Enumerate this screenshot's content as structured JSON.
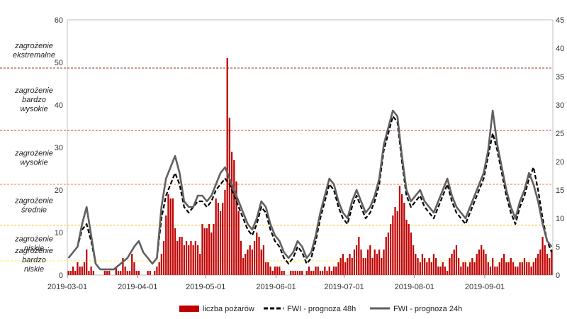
{
  "chart_data": {
    "type": "bar+line",
    "x_range": [
      "2019-03-01",
      "2019-09-30"
    ],
    "x_ticks": [
      "2019-03-01",
      "2019-04-01",
      "2019-05-01",
      "2019-06-01",
      "2019-07-01",
      "2019-08-01",
      "2019-09-01"
    ],
    "y_left": {
      "min": 0,
      "max": 60,
      "ticks": [
        0,
        10,
        20,
        30,
        40,
        50,
        60
      ]
    },
    "y_right": {
      "min": 0,
      "max": 45,
      "ticks": [
        0,
        5,
        10,
        15,
        20,
        25,
        30,
        35,
        40,
        45
      ]
    },
    "tick_labels_right": [
      "0",
      "5",
      "10",
      "15",
      "20",
      "25",
      "30",
      "35",
      "40",
      "45"
    ],
    "thresholds": [
      {
        "value": 2.5,
        "color": "#ffe84d"
      },
      {
        "value": 8.8,
        "color": "#f0c020"
      },
      {
        "value": 16.0,
        "color": "#f08040"
      },
      {
        "value": 25.5,
        "color": "#d04040"
      },
      {
        "value": 36.5,
        "color": "#903030"
      }
    ],
    "zones": [
      {
        "label": [
          "zagrożenie",
          "bardzo",
          "niskie"
        ]
      },
      {
        "label": [
          "zagrożenie",
          "niskie"
        ]
      },
      {
        "label": [
          "zagrożenie",
          "średnie"
        ]
      },
      {
        "label": [
          "zagrożenie",
          "wysokie"
        ]
      },
      {
        "label": [
          "zagrożenie",
          "bardzo",
          "wysokie"
        ]
      },
      {
        "label": [
          "zagrożenie",
          "ekstremalne"
        ]
      }
    ],
    "series": [
      {
        "name": "liczba pożarów",
        "type": "bar",
        "axis": "left",
        "color": "#c00000",
        "values": [
          1,
          1,
          2,
          1,
          3,
          2,
          2,
          3,
          6,
          1,
          2,
          1,
          0,
          0,
          0,
          0,
          1,
          1,
          1,
          0,
          0,
          2,
          1,
          1,
          4,
          2,
          1,
          1,
          5,
          3,
          1,
          1,
          0,
          0,
          0,
          1,
          1,
          0,
          1,
          2,
          3,
          5,
          8,
          14,
          19,
          18,
          18,
          11,
          8,
          9,
          9,
          7,
          8,
          7,
          8,
          7,
          8,
          7,
          5,
          12,
          11,
          11,
          12,
          10,
          12,
          18,
          17,
          15,
          17,
          20,
          51,
          37,
          29,
          27,
          22,
          15,
          8,
          4,
          5,
          6,
          7,
          6,
          8,
          10,
          9,
          6,
          7,
          3,
          3,
          2,
          1,
          2,
          2,
          2,
          1,
          1,
          0,
          0,
          1,
          1,
          1,
          1,
          1,
          1,
          0,
          1,
          2,
          1,
          1,
          2,
          2,
          1,
          1,
          2,
          1,
          2,
          1,
          2,
          2,
          3,
          4,
          5,
          3,
          4,
          5,
          4,
          6,
          7,
          9,
          6,
          4,
          4,
          6,
          7,
          4,
          6,
          5,
          6,
          4,
          6,
          9,
          10,
          12,
          14,
          16,
          15,
          21,
          19,
          17,
          13,
          12,
          10,
          7,
          5,
          4,
          3,
          5,
          4,
          3,
          4,
          3,
          5,
          4,
          2,
          2,
          3,
          2,
          1,
          4,
          5,
          6,
          7,
          4,
          2,
          3,
          3,
          2,
          3,
          4,
          3,
          5,
          6,
          7,
          6,
          5,
          3,
          2,
          4,
          2,
          2,
          3,
          4,
          5,
          3,
          3,
          4,
          3,
          2,
          2,
          3,
          3,
          4,
          3,
          3,
          2,
          3,
          4,
          5,
          6,
          9,
          7,
          5,
          4,
          6,
          3,
          2,
          3,
          2,
          1,
          1,
          1,
          1,
          1,
          1,
          0,
          1,
          1,
          1,
          2,
          1,
          1,
          1,
          1,
          0,
          1,
          1
        ]
      },
      {
        "name": "FWI - prognoza 48h",
        "type": "line",
        "axis": "right",
        "color": "#000000",
        "points": [
          [
            "2019-03-01",
            3
          ],
          [
            "2019-03-03",
            4
          ],
          [
            "2019-03-05",
            5
          ],
          [
            "2019-03-07",
            8
          ],
          [
            "2019-03-09",
            9
          ],
          [
            "2019-03-11",
            6
          ],
          [
            "2019-03-13",
            2
          ],
          [
            "2019-03-15",
            1
          ],
          [
            "2019-03-18",
            1
          ],
          [
            "2019-03-21",
            1
          ],
          [
            "2019-03-24",
            2
          ],
          [
            "2019-03-27",
            3
          ],
          [
            "2019-03-30",
            5
          ],
          [
            "2019-04-01",
            6
          ],
          [
            "2019-04-03",
            4
          ],
          [
            "2019-04-05",
            3
          ],
          [
            "2019-04-07",
            2
          ],
          [
            "2019-04-09",
            3
          ],
          [
            "2019-04-11",
            10
          ],
          [
            "2019-04-13",
            14
          ],
          [
            "2019-04-15",
            16
          ],
          [
            "2019-04-17",
            18
          ],
          [
            "2019-04-19",
            16
          ],
          [
            "2019-04-21",
            12
          ],
          [
            "2019-04-23",
            11
          ],
          [
            "2019-04-25",
            12
          ],
          [
            "2019-04-27",
            13
          ],
          [
            "2019-04-29",
            13
          ],
          [
            "2019-05-01",
            12
          ],
          [
            "2019-05-03",
            13
          ],
          [
            "2019-05-05",
            15
          ],
          [
            "2019-05-07",
            16
          ],
          [
            "2019-05-09",
            17
          ],
          [
            "2019-05-11",
            16
          ],
          [
            "2019-05-13",
            14
          ],
          [
            "2019-05-15",
            12
          ],
          [
            "2019-05-17",
            10
          ],
          [
            "2019-05-19",
            8
          ],
          [
            "2019-05-21",
            7
          ],
          [
            "2019-05-23",
            9
          ],
          [
            "2019-05-25",
            12
          ],
          [
            "2019-05-27",
            11
          ],
          [
            "2019-05-29",
            8
          ],
          [
            "2019-05-31",
            6
          ],
          [
            "2019-06-02",
            5
          ],
          [
            "2019-06-04",
            3
          ],
          [
            "2019-06-06",
            2
          ],
          [
            "2019-06-08",
            3
          ],
          [
            "2019-06-10",
            5
          ],
          [
            "2019-06-12",
            4
          ],
          [
            "2019-06-14",
            2
          ],
          [
            "2019-06-16",
            3
          ],
          [
            "2019-06-18",
            6
          ],
          [
            "2019-06-20",
            10
          ],
          [
            "2019-06-22",
            13
          ],
          [
            "2019-06-24",
            16
          ],
          [
            "2019-06-26",
            15
          ],
          [
            "2019-06-28",
            12
          ],
          [
            "2019-06-30",
            10
          ],
          [
            "2019-07-02",
            9
          ],
          [
            "2019-07-04",
            12
          ],
          [
            "2019-07-06",
            14
          ],
          [
            "2019-07-08",
            12
          ],
          [
            "2019-07-10",
            10
          ],
          [
            "2019-07-12",
            11
          ],
          [
            "2019-07-14",
            13
          ],
          [
            "2019-07-16",
            16
          ],
          [
            "2019-07-18",
            22
          ],
          [
            "2019-07-20",
            25
          ],
          [
            "2019-07-22",
            28
          ],
          [
            "2019-07-24",
            27
          ],
          [
            "2019-07-26",
            20
          ],
          [
            "2019-07-28",
            14
          ],
          [
            "2019-07-30",
            12
          ],
          [
            "2019-08-01",
            13
          ],
          [
            "2019-08-03",
            14
          ],
          [
            "2019-08-05",
            12
          ],
          [
            "2019-08-07",
            11
          ],
          [
            "2019-08-09",
            10
          ],
          [
            "2019-08-11",
            12
          ],
          [
            "2019-08-13",
            14
          ],
          [
            "2019-08-15",
            16
          ],
          [
            "2019-08-17",
            13
          ],
          [
            "2019-08-19",
            11
          ],
          [
            "2019-08-21",
            10
          ],
          [
            "2019-08-23",
            9
          ],
          [
            "2019-08-25",
            11
          ],
          [
            "2019-08-27",
            13
          ],
          [
            "2019-08-29",
            15
          ],
          [
            "2019-08-31",
            17
          ],
          [
            "2019-09-02",
            21
          ],
          [
            "2019-09-04",
            25
          ],
          [
            "2019-09-06",
            22
          ],
          [
            "2019-09-08",
            18
          ],
          [
            "2019-09-10",
            14
          ],
          [
            "2019-09-12",
            11
          ],
          [
            "2019-09-14",
            9
          ],
          [
            "2019-09-16",
            12
          ],
          [
            "2019-09-18",
            14
          ],
          [
            "2019-09-20",
            17
          ],
          [
            "2019-09-22",
            19
          ],
          [
            "2019-09-24",
            15
          ],
          [
            "2019-09-26",
            10
          ],
          [
            "2019-09-28",
            6
          ],
          [
            "2019-09-30",
            4
          ]
        ]
      },
      {
        "name": "FWI - prognoza 24h",
        "type": "line",
        "axis": "right",
        "color": "#606060",
        "points": [
          [
            "2019-03-01",
            3
          ],
          [
            "2019-03-03",
            4
          ],
          [
            "2019-03-05",
            5
          ],
          [
            "2019-03-07",
            9
          ],
          [
            "2019-03-09",
            12
          ],
          [
            "2019-03-11",
            7
          ],
          [
            "2019-03-13",
            2
          ],
          [
            "2019-03-15",
            1
          ],
          [
            "2019-03-18",
            1
          ],
          [
            "2019-03-21",
            1
          ],
          [
            "2019-03-24",
            2
          ],
          [
            "2019-03-27",
            3
          ],
          [
            "2019-03-30",
            5
          ],
          [
            "2019-04-01",
            6
          ],
          [
            "2019-04-03",
            4
          ],
          [
            "2019-04-05",
            3
          ],
          [
            "2019-04-07",
            2
          ],
          [
            "2019-04-09",
            3
          ],
          [
            "2019-04-11",
            12
          ],
          [
            "2019-04-13",
            17
          ],
          [
            "2019-04-15",
            19
          ],
          [
            "2019-04-17",
            21
          ],
          [
            "2019-04-19",
            18
          ],
          [
            "2019-04-21",
            13
          ],
          [
            "2019-04-23",
            12
          ],
          [
            "2019-04-25",
            12
          ],
          [
            "2019-04-27",
            14
          ],
          [
            "2019-04-29",
            14
          ],
          [
            "2019-05-01",
            13
          ],
          [
            "2019-05-03",
            14
          ],
          [
            "2019-05-05",
            16
          ],
          [
            "2019-05-07",
            18
          ],
          [
            "2019-05-09",
            19
          ],
          [
            "2019-05-11",
            17
          ],
          [
            "2019-05-13",
            15
          ],
          [
            "2019-05-15",
            13
          ],
          [
            "2019-05-17",
            11
          ],
          [
            "2019-05-19",
            9
          ],
          [
            "2019-05-21",
            8
          ],
          [
            "2019-05-23",
            10
          ],
          [
            "2019-05-25",
            13
          ],
          [
            "2019-05-27",
            12
          ],
          [
            "2019-05-29",
            9
          ],
          [
            "2019-05-31",
            7
          ],
          [
            "2019-06-02",
            6
          ],
          [
            "2019-06-04",
            4
          ],
          [
            "2019-06-06",
            3
          ],
          [
            "2019-06-08",
            4
          ],
          [
            "2019-06-10",
            6
          ],
          [
            "2019-06-12",
            5
          ],
          [
            "2019-06-14",
            3
          ],
          [
            "2019-06-16",
            4
          ],
          [
            "2019-06-18",
            7
          ],
          [
            "2019-06-20",
            11
          ],
          [
            "2019-06-22",
            14
          ],
          [
            "2019-06-24",
            17
          ],
          [
            "2019-06-26",
            16
          ],
          [
            "2019-06-28",
            13
          ],
          [
            "2019-06-30",
            11
          ],
          [
            "2019-07-02",
            10
          ],
          [
            "2019-07-04",
            13
          ],
          [
            "2019-07-06",
            15
          ],
          [
            "2019-07-08",
            13
          ],
          [
            "2019-07-10",
            11
          ],
          [
            "2019-07-12",
            12
          ],
          [
            "2019-07-14",
            14
          ],
          [
            "2019-07-16",
            17
          ],
          [
            "2019-07-18",
            23
          ],
          [
            "2019-07-20",
            26
          ],
          [
            "2019-07-22",
            29
          ],
          [
            "2019-07-24",
            28
          ],
          [
            "2019-07-26",
            21
          ],
          [
            "2019-07-28",
            15
          ],
          [
            "2019-07-30",
            13
          ],
          [
            "2019-08-01",
            14
          ],
          [
            "2019-08-03",
            15
          ],
          [
            "2019-08-05",
            13
          ],
          [
            "2019-08-07",
            12
          ],
          [
            "2019-08-09",
            11
          ],
          [
            "2019-08-11",
            13
          ],
          [
            "2019-08-13",
            15
          ],
          [
            "2019-08-15",
            17
          ],
          [
            "2019-08-17",
            14
          ],
          [
            "2019-08-19",
            12
          ],
          [
            "2019-08-21",
            11
          ],
          [
            "2019-08-23",
            10
          ],
          [
            "2019-08-25",
            12
          ],
          [
            "2019-08-27",
            14
          ],
          [
            "2019-08-29",
            16
          ],
          [
            "2019-08-31",
            18
          ],
          [
            "2019-09-02",
            22
          ],
          [
            "2019-09-04",
            29
          ],
          [
            "2019-09-06",
            23
          ],
          [
            "2019-09-08",
            19
          ],
          [
            "2019-09-10",
            15
          ],
          [
            "2019-09-12",
            12
          ],
          [
            "2019-09-14",
            10
          ],
          [
            "2019-09-16",
            13
          ],
          [
            "2019-09-18",
            15
          ],
          [
            "2019-09-20",
            18
          ],
          [
            "2019-09-22",
            16
          ],
          [
            "2019-09-24",
            13
          ],
          [
            "2019-09-26",
            9
          ],
          [
            "2019-09-28",
            6
          ],
          [
            "2019-09-30",
            5
          ]
        ]
      }
    ],
    "legend": [
      "liczba pożarów",
      "FWI - prognoza 48h",
      "FWI - prognoza 24h"
    ],
    "legend_placement": "bottom"
  }
}
